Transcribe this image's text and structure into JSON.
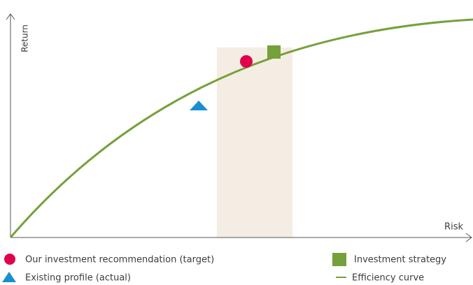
{
  "axes": {
    "y_label": "Return",
    "x_label": "Risk"
  },
  "legend": [
    {
      "label": "Our investment recommendation (target)"
    },
    {
      "label": "Existing profile (actual)"
    },
    {
      "label": "Investment strategy"
    },
    {
      "label": "Efficiency curve"
    }
  ]
}
